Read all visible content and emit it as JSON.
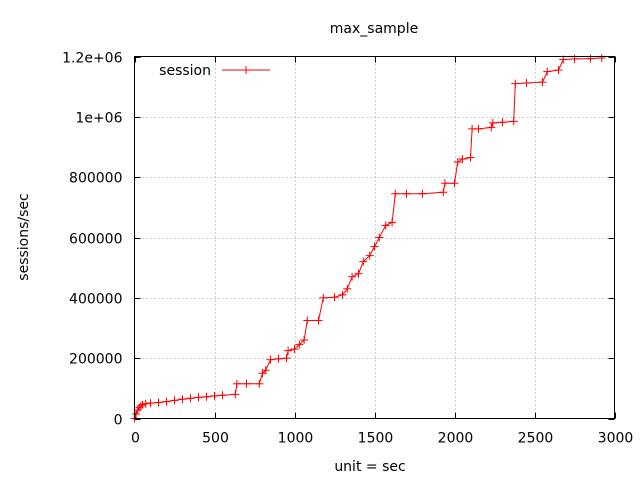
{
  "chart_data": {
    "type": "line",
    "title": "max_sample",
    "xlabel": "unit = sec",
    "ylabel": "sessions/sec",
    "xlim": [
      0,
      3000
    ],
    "ylim": [
      0,
      1200000
    ],
    "x_ticks": [
      0,
      500,
      1000,
      1500,
      2000,
      2500,
      3000
    ],
    "x_tick_labels": [
      "0",
      "500",
      "1000",
      "1500",
      "2000",
      "2500",
      "3000"
    ],
    "y_ticks": [
      0,
      200000,
      400000,
      600000,
      800000,
      1000000,
      1200000
    ],
    "y_tick_labels": [
      "0",
      "200000",
      "400000",
      "600000",
      "800000",
      "1e+06",
      "1.2e+06"
    ],
    "grid": true,
    "legend_position": "top-left",
    "colors": {
      "series": "#ff0000",
      "grid": "#a0a0a0",
      "axes": "#000000"
    },
    "series": [
      {
        "name": "session",
        "marker": "plus",
        "points": [
          [
            0,
            0
          ],
          [
            10,
            15000
          ],
          [
            20,
            28000
          ],
          [
            30,
            36000
          ],
          [
            40,
            42000
          ],
          [
            50,
            46000
          ],
          [
            70,
            49000
          ],
          [
            100,
            51000
          ],
          [
            150,
            53000
          ],
          [
            200,
            56000
          ],
          [
            250,
            60000
          ],
          [
            300,
            64000
          ],
          [
            350,
            67000
          ],
          [
            400,
            70000
          ],
          [
            450,
            72000
          ],
          [
            500,
            75000
          ],
          [
            550,
            77000
          ],
          [
            630,
            80000
          ],
          [
            640,
            115000
          ],
          [
            700,
            115000
          ],
          [
            780,
            115000
          ],
          [
            800,
            150000
          ],
          [
            820,
            160000
          ],
          [
            850,
            195000
          ],
          [
            900,
            198000
          ],
          [
            950,
            200000
          ],
          [
            960,
            225000
          ],
          [
            1000,
            230000
          ],
          [
            1030,
            245000
          ],
          [
            1060,
            260000
          ],
          [
            1080,
            325000
          ],
          [
            1150,
            325000
          ],
          [
            1180,
            400000
          ],
          [
            1250,
            402000
          ],
          [
            1300,
            410000
          ],
          [
            1330,
            430000
          ],
          [
            1360,
            470000
          ],
          [
            1400,
            480000
          ],
          [
            1430,
            520000
          ],
          [
            1470,
            540000
          ],
          [
            1500,
            570000
          ],
          [
            1530,
            600000
          ],
          [
            1570,
            640000
          ],
          [
            1610,
            650000
          ],
          [
            1630,
            745000
          ],
          [
            1700,
            745000
          ],
          [
            1800,
            745000
          ],
          [
            1930,
            750000
          ],
          [
            1940,
            780000
          ],
          [
            2000,
            780000
          ],
          [
            2020,
            850000
          ],
          [
            2050,
            860000
          ],
          [
            2100,
            865000
          ],
          [
            2110,
            960000
          ],
          [
            2150,
            960000
          ],
          [
            2230,
            965000
          ],
          [
            2240,
            980000
          ],
          [
            2300,
            982000
          ],
          [
            2370,
            985000
          ],
          [
            2380,
            1110000
          ],
          [
            2450,
            1112000
          ],
          [
            2550,
            1115000
          ],
          [
            2580,
            1150000
          ],
          [
            2650,
            1155000
          ],
          [
            2680,
            1190000
          ],
          [
            2750,
            1192000
          ],
          [
            2850,
            1193000
          ],
          [
            2920,
            1195000
          ]
        ]
      }
    ]
  }
}
